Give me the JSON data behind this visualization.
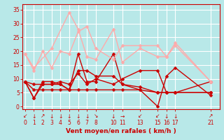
{
  "bg_color": "#b8e8e8",
  "grid_color": "#ffffff",
  "xlabel": "Vent moyen/en rafales ( km/h )",
  "xlabel_color": "#cc0000",
  "tick_color": "#cc0000",
  "xticks": [
    0,
    1,
    2,
    3,
    4,
    5,
    6,
    7,
    8,
    10,
    11,
    13,
    15,
    16,
    17,
    21
  ],
  "yticks": [
    0,
    5,
    10,
    15,
    20,
    25,
    30,
    35
  ],
  "ylim": [
    -1,
    37
  ],
  "xlim": [
    -0.3,
    22
  ],
  "lines": [
    {
      "x": [
        0,
        1,
        2,
        3,
        4,
        5,
        6,
        7,
        8,
        10,
        11,
        13,
        15,
        16,
        17,
        21
      ],
      "y": [
        9,
        3,
        9,
        9,
        8,
        6,
        19,
        9,
        9,
        19,
        8,
        6,
        0,
        11,
        14,
        4
      ],
      "color": "#cc0000",
      "lw": 1.0,
      "marker": "D",
      "ms": 2.5
    },
    {
      "x": [
        0,
        1,
        2,
        3,
        4,
        5,
        6,
        7,
        8,
        10,
        11,
        13,
        15,
        16,
        17,
        21
      ],
      "y": [
        9,
        3,
        8,
        8,
        8,
        6,
        13,
        13,
        11,
        11,
        8,
        7,
        5,
        5,
        5,
        5
      ],
      "color": "#cc0000",
      "lw": 1.0,
      "marker": "D",
      "ms": 2.5
    },
    {
      "x": [
        0,
        1,
        2,
        3,
        4,
        5,
        6,
        7,
        8,
        10,
        11,
        13,
        15,
        16,
        17,
        21
      ],
      "y": [
        9,
        8,
        8,
        8,
        9,
        8,
        12,
        8,
        10,
        8,
        10,
        13,
        13,
        5,
        5,
        9
      ],
      "color": "#cc0000",
      "lw": 1.0,
      "marker": "D",
      "ms": 2.5
    },
    {
      "x": [
        0,
        1,
        2,
        3,
        4,
        5,
        6,
        7,
        8,
        10,
        11,
        13,
        15,
        16,
        17,
        21
      ],
      "y": [
        9,
        6,
        6,
        6,
        6,
        6,
        6,
        6,
        6,
        6,
        6,
        6,
        5,
        5,
        5,
        5
      ],
      "color": "#cc0000",
      "lw": 1.0,
      "marker": "D",
      "ms": 2.5
    },
    {
      "x": [
        0,
        1,
        2,
        3,
        4,
        5,
        6,
        7,
        8,
        10,
        11,
        13,
        15,
        16,
        17,
        21
      ],
      "y": [
        19,
        13,
        20,
        14,
        20,
        19,
        27,
        29,
        21,
        17,
        22,
        22,
        22,
        18,
        22,
        9
      ],
      "color": "#ffaaaa",
      "lw": 1.0,
      "marker": "D",
      "ms": 2.5
    },
    {
      "x": [
        0,
        1,
        3,
        5,
        6,
        7,
        8,
        10,
        11,
        13,
        15,
        16,
        17,
        21
      ],
      "y": [
        19,
        14,
        21,
        34,
        28,
        18,
        17,
        28,
        16,
        21,
        18,
        18,
        23,
        9
      ],
      "color": "#ffaaaa",
      "lw": 1.0,
      "marker": "D",
      "ms": 2.5
    }
  ],
  "arrow_labels": {
    "0": "↙",
    "1": "↓",
    "2": "↗",
    "3": "↓",
    "4": "↓",
    "5": "↓",
    "6": "↓",
    "7": "↓",
    "8": "↘",
    "10": "↓",
    "11": "→",
    "13": "↙",
    "15": "↙",
    "16": "↓",
    "17": "↓",
    "21": "↗"
  }
}
